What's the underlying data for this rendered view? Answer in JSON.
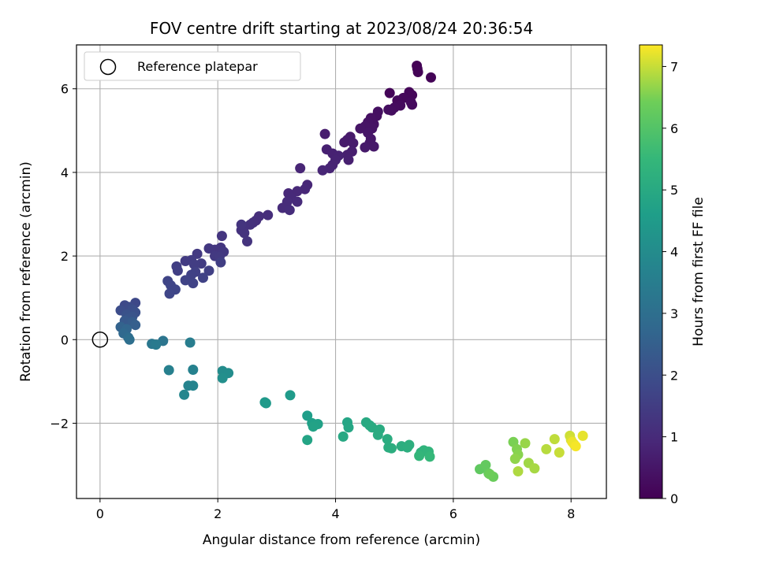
{
  "chart_data": {
    "type": "scatter",
    "title": "FOV centre drift starting at 2023/08/24 20:36:54",
    "xlabel": "Angular distance from reference (arcmin)",
    "ylabel": "Rotation from reference (arcmin)",
    "xlim": [
      -0.4,
      8.6
    ],
    "ylim": [
      -3.8,
      7.05
    ],
    "xticks": [
      0,
      2,
      4,
      6,
      8
    ],
    "yticks": [
      -2,
      0,
      2,
      4,
      6
    ],
    "xtick_labels": [
      "0",
      "2",
      "4",
      "6",
      "8"
    ],
    "ytick_labels": [
      "−2",
      "0",
      "2",
      "4",
      "6"
    ],
    "grid": true,
    "legend": {
      "position": "top-left",
      "entries": [
        "Reference platepar"
      ]
    },
    "reference_point": {
      "x": 0,
      "y": 0
    },
    "colorbar": {
      "label": "Hours from first FF file",
      "colormap": "viridis",
      "range": [
        0,
        7.35
      ],
      "ticks": [
        0,
        1,
        2,
        3,
        4,
        5,
        6,
        7
      ],
      "tick_labels": [
        "0",
        "1",
        "2",
        "3",
        "4",
        "5",
        "6",
        "7"
      ]
    },
    "points": [
      [
        5.38,
        6.55,
        0.02
      ],
      [
        5.39,
        6.48,
        0.04
      ],
      [
        5.4,
        6.4,
        0.06
      ],
      [
        5.62,
        6.27,
        0.08
      ],
      [
        4.92,
        5.9,
        0.1
      ],
      [
        5.25,
        5.92,
        0.12
      ],
      [
        5.3,
        5.85,
        0.14
      ],
      [
        5.15,
        5.78,
        0.16
      ],
      [
        5.05,
        5.72,
        0.18
      ],
      [
        5.28,
        5.68,
        0.2
      ],
      [
        5.3,
        5.62,
        0.22
      ],
      [
        5.1,
        5.6,
        0.24
      ],
      [
        5.0,
        5.55,
        0.26
      ],
      [
        4.95,
        5.48,
        0.28
      ],
      [
        4.9,
        5.5,
        0.3
      ],
      [
        4.72,
        5.45,
        0.32
      ],
      [
        4.7,
        5.35,
        0.34
      ],
      [
        4.6,
        5.3,
        0.36
      ],
      [
        4.65,
        5.15,
        0.38
      ],
      [
        4.55,
        5.2,
        0.4
      ],
      [
        4.62,
        5.05,
        0.42
      ],
      [
        4.5,
        5.1,
        0.44
      ],
      [
        4.42,
        5.05,
        0.46
      ],
      [
        4.55,
        4.95,
        0.48
      ],
      [
        4.6,
        4.8,
        0.5
      ],
      [
        4.58,
        4.7,
        0.52
      ],
      [
        4.65,
        4.62,
        0.54
      ],
      [
        4.5,
        4.6,
        0.56
      ],
      [
        4.25,
        4.85,
        0.58
      ],
      [
        4.2,
        4.78,
        0.6
      ],
      [
        4.15,
        4.72,
        0.62
      ],
      [
        4.3,
        4.7,
        0.64
      ],
      [
        3.82,
        4.92,
        0.66
      ],
      [
        4.28,
        4.5,
        0.68
      ],
      [
        4.2,
        4.42,
        0.7
      ],
      [
        4.22,
        4.3,
        0.72
      ],
      [
        3.85,
        4.55,
        0.74
      ],
      [
        3.95,
        4.45,
        0.76
      ],
      [
        4.05,
        4.4,
        0.78
      ],
      [
        4.0,
        4.3,
        0.8
      ],
      [
        3.95,
        4.18,
        0.82
      ],
      [
        3.9,
        4.1,
        0.84
      ],
      [
        3.78,
        4.05,
        0.86
      ],
      [
        3.4,
        4.1,
        0.88
      ],
      [
        3.52,
        3.7,
        0.9
      ],
      [
        3.48,
        3.6,
        0.92
      ],
      [
        3.35,
        3.55,
        0.94
      ],
      [
        3.2,
        3.5,
        0.96
      ],
      [
        3.25,
        3.4,
        0.98
      ],
      [
        3.35,
        3.3,
        1.0
      ],
      [
        3.18,
        3.3,
        1.02
      ],
      [
        3.1,
        3.15,
        1.04
      ],
      [
        3.22,
        3.1,
        1.06
      ],
      [
        2.85,
        2.98,
        1.08
      ],
      [
        2.7,
        2.95,
        1.1
      ],
      [
        2.65,
        2.85,
        1.12
      ],
      [
        2.6,
        2.8,
        1.14
      ],
      [
        2.55,
        2.75,
        1.16
      ],
      [
        2.45,
        2.7,
        1.18
      ],
      [
        2.4,
        2.62,
        1.2
      ],
      [
        2.45,
        2.55,
        1.22
      ],
      [
        2.5,
        2.35,
        1.24
      ],
      [
        2.4,
        2.75,
        1.26
      ],
      [
        2.07,
        2.48,
        1.28
      ],
      [
        2.05,
        2.2,
        1.3
      ],
      [
        1.95,
        2.15,
        1.32
      ],
      [
        1.85,
        2.18,
        1.34
      ],
      [
        2.1,
        2.1,
        1.36
      ],
      [
        1.95,
        2.0,
        1.38
      ],
      [
        1.65,
        2.05,
        1.4
      ],
      [
        2.03,
        1.98,
        1.42
      ],
      [
        1.55,
        1.9,
        1.44
      ],
      [
        1.45,
        1.88,
        1.46
      ],
      [
        1.72,
        1.82,
        1.48
      ],
      [
        1.6,
        1.8,
        1.5
      ],
      [
        2.05,
        1.85,
        1.52
      ],
      [
        1.3,
        1.75,
        1.54
      ],
      [
        1.32,
        1.65,
        1.56
      ],
      [
        1.85,
        1.65,
        1.58
      ],
      [
        1.62,
        1.62,
        1.6
      ],
      [
        1.55,
        1.55,
        1.62
      ],
      [
        1.75,
        1.48,
        1.64
      ],
      [
        1.45,
        1.42,
        1.66
      ],
      [
        1.58,
        1.35,
        1.68
      ],
      [
        1.15,
        1.4,
        1.7
      ],
      [
        1.2,
        1.3,
        1.72
      ],
      [
        1.28,
        1.2,
        1.74
      ],
      [
        1.18,
        1.1,
        1.76
      ],
      [
        0.6,
        0.88,
        1.8
      ],
      [
        0.42,
        0.82,
        1.85
      ],
      [
        0.5,
        0.78,
        1.9
      ],
      [
        0.35,
        0.7,
        1.95
      ],
      [
        0.55,
        0.72,
        2.0
      ],
      [
        0.6,
        0.65,
        2.05
      ],
      [
        0.45,
        0.6,
        2.1
      ],
      [
        0.55,
        0.55,
        2.15
      ],
      [
        0.48,
        0.5,
        2.2
      ],
      [
        0.42,
        0.45,
        2.3
      ],
      [
        0.55,
        0.42,
        2.4
      ],
      [
        0.6,
        0.35,
        2.5
      ],
      [
        0.35,
        0.3,
        2.6
      ],
      [
        0.45,
        0.25,
        2.7
      ],
      [
        0.4,
        0.15,
        2.8
      ],
      [
        0.48,
        0.05,
        2.9
      ],
      [
        0.5,
        0.0,
        3.0
      ],
      [
        1.07,
        -0.03,
        3.2
      ],
      [
        0.88,
        -0.1,
        3.3
      ],
      [
        0.95,
        -0.12,
        3.4
      ],
      [
        1.53,
        -0.07,
        3.5
      ],
      [
        1.17,
        -0.73,
        3.6
      ],
      [
        1.58,
        -0.72,
        3.65
      ],
      [
        1.5,
        -1.1,
        3.7
      ],
      [
        1.58,
        -1.1,
        3.75
      ],
      [
        1.43,
        -1.32,
        3.8
      ],
      [
        2.08,
        -0.75,
        4.0
      ],
      [
        2.18,
        -0.8,
        4.05
      ],
      [
        2.08,
        -0.92,
        4.1
      ],
      [
        2.8,
        -1.5,
        4.4
      ],
      [
        2.82,
        -1.52,
        4.45
      ],
      [
        3.23,
        -1.33,
        4.5
      ],
      [
        3.52,
        -1.82,
        4.6
      ],
      [
        3.6,
        -2.0,
        4.65
      ],
      [
        3.7,
        -2.02,
        4.7
      ],
      [
        3.62,
        -2.08,
        4.75
      ],
      [
        3.52,
        -2.4,
        4.8
      ],
      [
        4.2,
        -1.98,
        4.85
      ],
      [
        4.22,
        -2.1,
        4.9
      ],
      [
        4.13,
        -2.32,
        4.95
      ],
      [
        4.52,
        -1.98,
        5.0
      ],
      [
        4.58,
        -2.05,
        5.02
      ],
      [
        4.62,
        -2.1,
        5.04
      ],
      [
        4.75,
        -2.15,
        5.06
      ],
      [
        4.72,
        -2.28,
        5.08
      ],
      [
        4.88,
        -2.38,
        5.1
      ],
      [
        4.9,
        -2.58,
        5.12
      ],
      [
        4.95,
        -2.6,
        5.14
      ],
      [
        5.12,
        -2.55,
        5.16
      ],
      [
        5.22,
        -2.58,
        5.18
      ],
      [
        5.25,
        -2.52,
        5.2
      ],
      [
        5.45,
        -2.7,
        5.3
      ],
      [
        5.5,
        -2.65,
        5.35
      ],
      [
        5.58,
        -2.68,
        5.4
      ],
      [
        5.42,
        -2.78,
        5.45
      ],
      [
        5.6,
        -2.8,
        5.5
      ],
      [
        6.45,
        -3.1,
        6.2
      ],
      [
        6.55,
        -3.0,
        6.25
      ],
      [
        6.6,
        -3.2,
        6.3
      ],
      [
        6.68,
        -3.28,
        6.35
      ],
      [
        6.62,
        -3.22,
        6.4
      ],
      [
        7.02,
        -2.45,
        6.5
      ],
      [
        7.08,
        -2.62,
        6.55
      ],
      [
        7.1,
        -2.75,
        6.6
      ],
      [
        7.05,
        -2.85,
        6.65
      ],
      [
        7.22,
        -2.48,
        6.7
      ],
      [
        7.28,
        -2.95,
        6.75
      ],
      [
        7.38,
        -3.08,
        6.8
      ],
      [
        7.1,
        -3.15,
        6.85
      ],
      [
        7.58,
        -2.62,
        6.9
      ],
      [
        7.72,
        -2.38,
        6.95
      ],
      [
        7.8,
        -2.7,
        7.0
      ],
      [
        7.98,
        -2.3,
        7.05
      ],
      [
        8.0,
        -2.4,
        7.1
      ],
      [
        8.05,
        -2.5,
        7.15
      ],
      [
        8.2,
        -2.3,
        7.2
      ],
      [
        8.02,
        -2.45,
        7.25
      ],
      [
        8.08,
        -2.55,
        7.3
      ]
    ]
  }
}
